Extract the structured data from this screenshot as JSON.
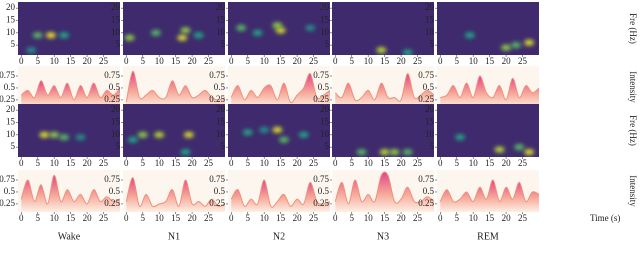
{
  "chart_data": {
    "type": "sleep-stage-grid",
    "stages": [
      "Wake",
      "N1",
      "N2",
      "N3",
      "REM"
    ],
    "freq_label": "Fre (Hz)",
    "intensity_label": "Intensity",
    "time_label": "Time (s)",
    "xlim": [
      -1,
      30
    ],
    "xticks": [
      0,
      5,
      10,
      15,
      20,
      25
    ],
    "spec_ylim": [
      1,
      22.5
    ],
    "spec_yticks": [
      5,
      10,
      15,
      20
    ],
    "int_ylim": [
      0.08,
      0.96
    ],
    "int_yticks": [
      0.25,
      0.5,
      0.75
    ],
    "int_x": [
      0,
      2,
      4,
      6,
      8,
      10,
      12,
      14,
      16,
      18,
      20,
      22,
      24,
      26,
      28,
      30
    ],
    "spec_background": "#3e2a6c",
    "colormap": [
      "#3e2a6c",
      "#2c6f8e",
      "#22a884",
      "#a8db34",
      "#fde725"
    ],
    "line_color": "#f0907a",
    "rows": [
      {
        "panels": [
          {
            "spectrogram": {
              "type": "heatmap",
              "x": [
                5,
                9,
                13,
                3
              ],
              "y": [
                9,
                9,
                9,
                3
              ],
              "values": [
                0.6,
                0.95,
                0.5,
                0.4
              ]
            },
            "intensity": {
              "type": "area",
              "values": [
                0.35,
                0.45,
                0.3,
                0.65,
                0.35,
                0.55,
                0.3,
                0.6,
                0.25,
                0.55,
                0.3,
                0.6,
                0.3,
                0.45,
                0.35,
                0.5
              ]
            }
          },
          {
            "spectrogram": {
              "type": "heatmap",
              "x": [
                1,
                9,
                17,
                18,
                22
              ],
              "y": [
                8,
                10,
                8,
                11,
                9
              ],
              "values": [
                0.7,
                0.6,
                0.9,
                0.7,
                0.5
              ]
            },
            "intensity": {
              "type": "area",
              "values": [
                0.2,
                0.85,
                0.3,
                0.35,
                0.45,
                0.3,
                0.3,
                0.65,
                0.35,
                0.55,
                0.3,
                0.35,
                0.45,
                0.3,
                0.25,
                0.3
              ]
            }
          },
          {
            "spectrogram": {
              "type": "heatmap",
              "x": [
                3,
                8,
                15,
                14,
                24
              ],
              "y": [
                12,
                10,
                11,
                13,
                12
              ],
              "values": [
                0.6,
                0.5,
                0.9,
                0.7,
                0.4
              ]
            },
            "intensity": {
              "type": "area",
              "values": [
                0.3,
                0.55,
                0.25,
                0.45,
                0.3,
                0.5,
                0.55,
                0.25,
                0.6,
                0.2,
                0.35,
                0.5,
                0.8,
                0.3,
                0.35,
                0.45
              ]
            }
          },
          {
            "spectrogram": {
              "type": "heatmap",
              "x": [
                14,
                22
              ],
              "y": [
                3,
                2
              ],
              "values": [
                0.8,
                0.5
              ]
            },
            "intensity": {
              "type": "area",
              "values": [
                0.4,
                0.3,
                0.6,
                0.25,
                0.3,
                0.45,
                0.25,
                0.6,
                0.3,
                0.3,
                0.25,
                0.8,
                0.3,
                0.35,
                0.45,
                0.35
              ]
            }
          },
          {
            "spectrogram": {
              "type": "heatmap",
              "x": [
                20,
                23,
                27,
                9
              ],
              "y": [
                4,
                5,
                6,
                9
              ],
              "values": [
                0.7,
                0.6,
                0.9,
                0.5
              ]
            },
            "intensity": {
              "type": "area",
              "values": [
                0.3,
                0.35,
                0.55,
                0.3,
                0.6,
                0.3,
                0.75,
                0.4,
                0.3,
                0.55,
                0.25,
                0.7,
                0.3,
                0.55,
                0.4,
                0.5
              ]
            }
          }
        ]
      },
      {
        "panels": [
          {
            "spectrogram": {
              "type": "heatmap",
              "x": [
                7,
                10,
                13,
                18
              ],
              "y": [
                10,
                10,
                9,
                9
              ],
              "values": [
                0.9,
                0.7,
                0.6,
                0.4
              ]
            },
            "intensity": {
              "type": "area",
              "values": [
                0.35,
                0.75,
                0.3,
                0.65,
                0.25,
                0.85,
                0.3,
                0.55,
                0.3,
                0.45,
                0.25,
                0.55,
                0.3,
                0.4,
                0.3,
                0.35
              ]
            }
          },
          {
            "spectrogram": {
              "type": "heatmap",
              "x": [
                5,
                10,
                19,
                18,
                2
              ],
              "y": [
                10,
                10,
                10,
                3,
                8
              ],
              "values": [
                0.7,
                0.8,
                0.9,
                0.5,
                0.5
              ]
            },
            "intensity": {
              "type": "area",
              "values": [
                0.3,
                0.8,
                0.2,
                0.45,
                0.2,
                0.25,
                0.3,
                0.55,
                0.2,
                0.75,
                0.25,
                0.3,
                0.2,
                0.35,
                0.2,
                0.25
              ]
            }
          },
          {
            "spectrogram": {
              "type": "heatmap",
              "x": [
                5,
                14,
                16,
                22,
                10
              ],
              "y": [
                11,
                12,
                8,
                10,
                12
              ],
              "values": [
                0.5,
                0.9,
                0.6,
                0.5,
                0.4
              ]
            },
            "intensity": {
              "type": "area",
              "values": [
                0.35,
                0.55,
                0.2,
                0.35,
                0.25,
                0.75,
                0.2,
                0.3,
                0.45,
                0.2,
                0.35,
                0.25,
                0.7,
                0.3,
                0.25,
                0.3
              ]
            }
          },
          {
            "spectrogram": {
              "type": "heatmap",
              "x": [
                8,
                15,
                18,
                22
              ],
              "y": [
                3,
                3,
                3,
                3
              ],
              "values": [
                0.6,
                0.8,
                0.7,
                0.6
              ]
            },
            "intensity": {
              "type": "area",
              "values": [
                0.3,
                0.7,
                0.25,
                0.75,
                0.3,
                0.45,
                0.3,
                0.85,
                0.85,
                0.3,
                0.35,
                0.6,
                0.3,
                0.3,
                0.4,
                0.3
              ]
            }
          },
          {
            "spectrogram": {
              "type": "heatmap",
              "x": [
                18,
                24,
                27,
                6
              ],
              "y": [
                4,
                5,
                3,
                9
              ],
              "values": [
                0.8,
                0.6,
                0.9,
                0.5
              ]
            },
            "intensity": {
              "type": "area",
              "values": [
                0.3,
                0.55,
                0.3,
                0.35,
                0.5,
                0.3,
                0.6,
                0.35,
                0.75,
                0.3,
                0.6,
                0.35,
                0.7,
                0.3,
                0.5,
                0.45
              ]
            }
          }
        ]
      }
    ]
  }
}
